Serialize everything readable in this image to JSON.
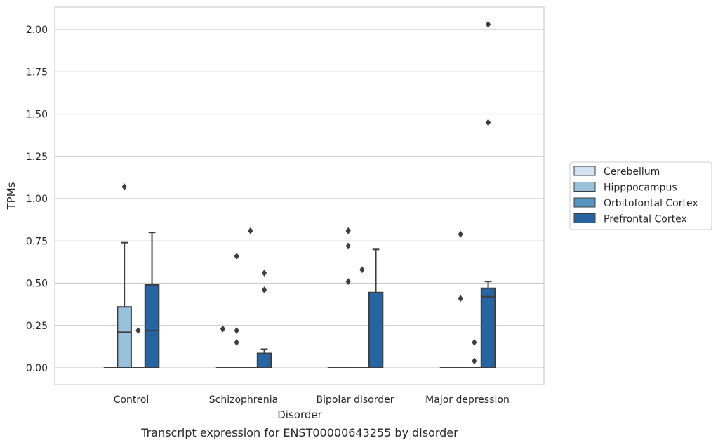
{
  "chart_data": {
    "type": "box",
    "xlabel": "Disorder",
    "ylabel": "TPMs",
    "caption": "Transcript expression for ENST00000643255 by disorder",
    "ylim": [
      -0.1,
      2.13
    ],
    "y_ticks": [
      "0.00",
      "0.25",
      "0.50",
      "0.75",
      "1.00",
      "1.25",
      "1.50",
      "1.75",
      "2.00"
    ],
    "grid": "horizontal",
    "legend_position": "right",
    "categories": [
      "Control",
      "Schizophrenia",
      "Bipolar disorder",
      "Major depression"
    ],
    "series": [
      {
        "name": "Cerebellum",
        "color": "#d3e2f0",
        "boxes": [
          {
            "q1": 0,
            "median": 0,
            "q3": 0,
            "whisker_low": 0,
            "whisker_high": 0,
            "outliers": []
          },
          {
            "q1": 0,
            "median": 0,
            "q3": 0,
            "whisker_low": 0,
            "whisker_high": 0,
            "outliers": [
              0.23
            ]
          },
          {
            "q1": 0,
            "median": 0,
            "q3": 0,
            "whisker_low": 0,
            "whisker_high": 0,
            "outliers": []
          },
          {
            "q1": 0,
            "median": 0,
            "q3": 0,
            "whisker_low": 0,
            "whisker_high": 0,
            "outliers": []
          }
        ]
      },
      {
        "name": "Hipppocampus",
        "color": "#9ac1dc",
        "boxes": [
          {
            "q1": 0,
            "median": 0.21,
            "q3": 0.36,
            "whisker_low": 0,
            "whisker_high": 0.74,
            "outliers": [
              1.07
            ]
          },
          {
            "q1": 0,
            "median": 0,
            "q3": 0,
            "whisker_low": 0,
            "whisker_high": 0,
            "outliers": [
              0.66,
              0.22,
              0.15
            ]
          },
          {
            "q1": 0,
            "median": 0,
            "q3": 0,
            "whisker_low": 0,
            "whisker_high": 0,
            "outliers": [
              0.81,
              0.72,
              0.51
            ]
          },
          {
            "q1": 0,
            "median": 0,
            "q3": 0,
            "whisker_low": 0,
            "whisker_high": 0,
            "outliers": [
              0.79,
              0.41
            ]
          }
        ]
      },
      {
        "name": "Orbitofontal Cortex",
        "color": "#5796c4",
        "boxes": [
          {
            "q1": 0,
            "median": 0,
            "q3": 0,
            "whisker_low": 0,
            "whisker_high": 0,
            "outliers": [
              0.22
            ]
          },
          {
            "q1": 0,
            "median": 0,
            "q3": 0,
            "whisker_low": 0,
            "whisker_high": 0,
            "outliers": [
              0.81
            ]
          },
          {
            "q1": 0,
            "median": 0,
            "q3": 0,
            "whisker_low": 0,
            "whisker_high": 0,
            "outliers": [
              0.58
            ]
          },
          {
            "q1": 0,
            "median": 0,
            "q3": 0,
            "whisker_low": 0,
            "whisker_high": 0,
            "outliers": [
              0.15,
              0.04
            ]
          }
        ]
      },
      {
        "name": "Prefrontal Cortex",
        "color": "#2765a2",
        "boxes": [
          {
            "q1": 0,
            "median": 0.22,
            "q3": 0.49,
            "whisker_low": 0,
            "whisker_high": 0.8,
            "outliers": []
          },
          {
            "q1": 0,
            "median": 0,
            "q3": 0.085,
            "whisker_low": 0,
            "whisker_high": 0.11,
            "outliers": [
              0.56,
              0.46
            ]
          },
          {
            "q1": 0,
            "median": 0,
            "q3": 0.445,
            "whisker_low": 0,
            "whisker_high": 0.7,
            "outliers": []
          },
          {
            "q1": 0,
            "median": 0.42,
            "q3": 0.47,
            "whisker_low": 0,
            "whisker_high": 0.51,
            "outliers": [
              2.03,
              1.45
            ]
          }
        ]
      }
    ],
    "outlier_marker": "diamond",
    "box_edge_color": "#3d3d3d"
  }
}
